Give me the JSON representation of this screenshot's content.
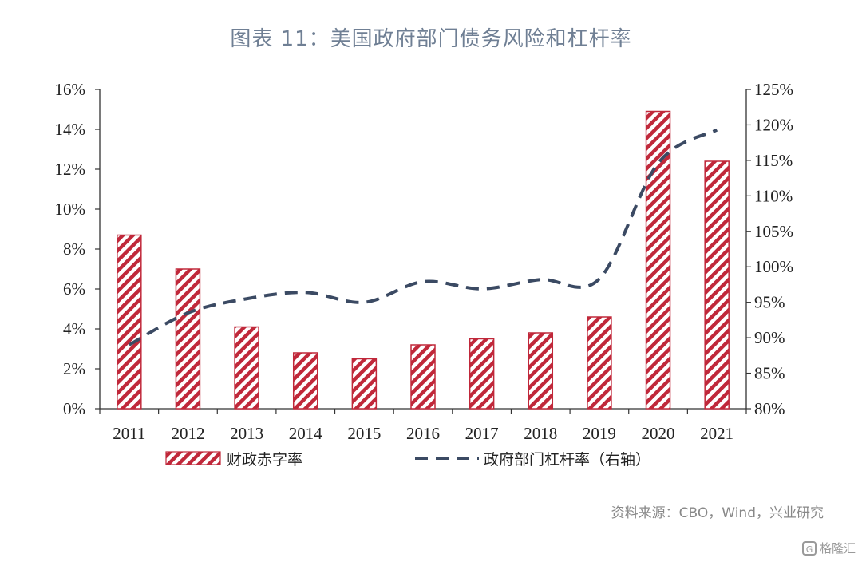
{
  "chart_data": {
    "type": "bar",
    "title": "图表 11：美国政府部门债务风险和杠杆率",
    "categories": [
      "2011",
      "2012",
      "2013",
      "2014",
      "2015",
      "2016",
      "2017",
      "2018",
      "2019",
      "2020",
      "2021"
    ],
    "series": [
      {
        "name": "财政赤字率",
        "type": "bar",
        "axis": "left",
        "color": "#c0283a",
        "pattern": "diagonal-hatch",
        "values": [
          8.7,
          7.0,
          4.1,
          2.8,
          2.5,
          3.2,
          3.5,
          3.8,
          4.6,
          14.9,
          12.4
        ]
      },
      {
        "name": "政府部门杠杆率（右轴）",
        "type": "line",
        "style": "dashed",
        "axis": "right",
        "color": "#3b4a63",
        "values": [
          89.0,
          93.5,
          95.5,
          96.4,
          95.0,
          97.9,
          96.9,
          98.2,
          98.3,
          114.6,
          119.3
        ]
      }
    ],
    "y_left": {
      "ylim": [
        0,
        16
      ],
      "ticks": [
        "0%",
        "2%",
        "4%",
        "6%",
        "8%",
        "10%",
        "12%",
        "14%",
        "16%"
      ]
    },
    "y_right": {
      "ylim": [
        80,
        125
      ],
      "ticks": [
        "80%",
        "85%",
        "90%",
        "95%",
        "100%",
        "105%",
        "110%",
        "115%",
        "120%",
        "125%"
      ]
    },
    "grid": false,
    "legend": "bottom"
  },
  "source": "资料来源：CBO，Wind，兴业研究",
  "watermark": "格隆汇",
  "watermark_logo": "G"
}
